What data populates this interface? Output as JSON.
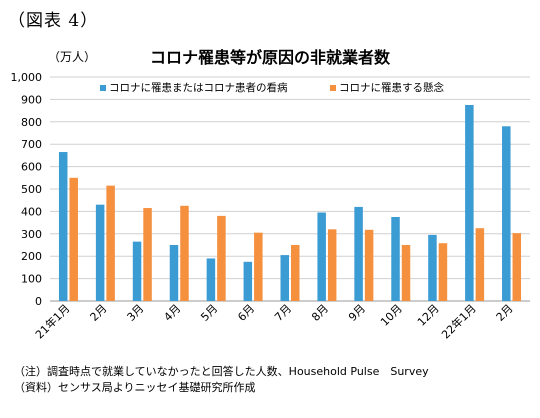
{
  "figure_label": "（図表 4）",
  "notes": [
    "（注）調査時点で就業していなかったと回答した人数、Household Pulse　Survey",
    "（資料）センサス局よりニッセイ基礎研究所作成"
  ],
  "chart_data": {
    "type": "bar",
    "title": "コロナ罹患等が原因の非就業者数",
    "ylabel": "（万人）",
    "xlabel": "",
    "ylim": [
      0,
      1000
    ],
    "yticks": [
      0,
      100,
      200,
      300,
      400,
      500,
      600,
      700,
      800,
      900,
      1000
    ],
    "ytick_labels": [
      "0",
      "100",
      "200",
      "300",
      "400",
      "500",
      "600",
      "700",
      "800",
      "900",
      "1,000"
    ],
    "grid": true,
    "legend_position": "top",
    "categories": [
      "21年1月",
      "2月",
      "3月",
      "4月",
      "5月",
      "6月",
      "7月",
      "8月",
      "9月",
      "10月",
      "12月",
      "22年1月",
      "2月"
    ],
    "series": [
      {
        "name": "コロナに罹患またはコロナ患者の看病",
        "color": "#3b9bd3",
        "values": [
          665,
          430,
          265,
          250,
          190,
          175,
          205,
          395,
          420,
          375,
          295,
          875,
          780
        ]
      },
      {
        "name": "コロナに罹患する懸念",
        "color": "#f5903f",
        "values": [
          550,
          515,
          415,
          425,
          380,
          305,
          250,
          320,
          318,
          250,
          258,
          325,
          303
        ]
      }
    ]
  }
}
